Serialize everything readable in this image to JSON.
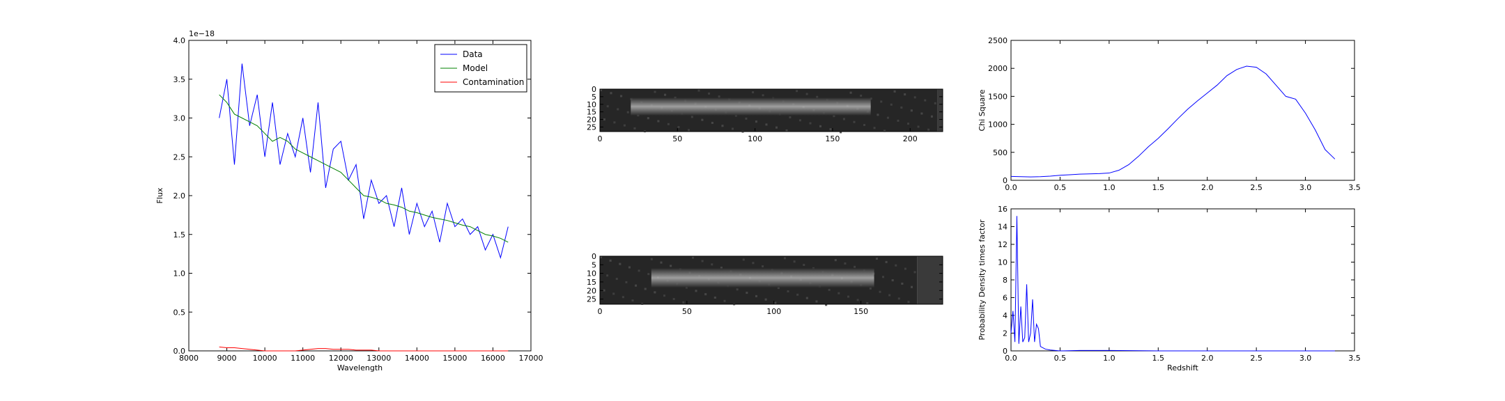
{
  "chart_data": [
    {
      "type": "line",
      "xlabel": "Wavelength",
      "ylabel": "Flux",
      "offset_label": "1e−18",
      "x": [
        8800,
        9000,
        9200,
        9400,
        9600,
        9800,
        10000,
        10200,
        10400,
        10600,
        10800,
        11000,
        11200,
        11400,
        11600,
        11800,
        12000,
        12200,
        12400,
        12600,
        12800,
        13000,
        13200,
        13400,
        13600,
        13800,
        14000,
        14200,
        14400,
        14600,
        14800,
        15000,
        15200,
        15400,
        15600,
        15800,
        16000,
        16200,
        16400
      ],
      "series": [
        {
          "name": "Data",
          "color": "#0000ff",
          "values": [
            3.0,
            3.5,
            2.4,
            3.7,
            2.9,
            3.3,
            2.5,
            3.2,
            2.4,
            2.8,
            2.5,
            3.0,
            2.3,
            3.2,
            2.1,
            2.6,
            2.7,
            2.2,
            2.4,
            1.7,
            2.2,
            1.9,
            2.0,
            1.6,
            2.1,
            1.5,
            1.9,
            1.6,
            1.8,
            1.4,
            1.9,
            1.6,
            1.7,
            1.5,
            1.6,
            1.3,
            1.5,
            1.2,
            1.6
          ]
        },
        {
          "name": "Model",
          "color": "#008000",
          "values": [
            3.3,
            3.2,
            3.05,
            3.0,
            2.95,
            2.9,
            2.8,
            2.7,
            2.75,
            2.7,
            2.6,
            2.55,
            2.5,
            2.45,
            2.4,
            2.35,
            2.3,
            2.2,
            2.1,
            2.0,
            1.98,
            1.95,
            1.9,
            1.88,
            1.85,
            1.8,
            1.78,
            1.75,
            1.72,
            1.7,
            1.68,
            1.65,
            1.62,
            1.6,
            1.55,
            1.5,
            1.48,
            1.45,
            1.4
          ]
        },
        {
          "name": "Contamination",
          "color": "#ff0000",
          "values": [
            0.05,
            0.04,
            0.04,
            0.03,
            0.02,
            0.01,
            0,
            0,
            0,
            0,
            0,
            0.01,
            0.02,
            0.03,
            0.03,
            0.02,
            0.02,
            0.02,
            0.01,
            0.01,
            0.01,
            0,
            0,
            0,
            0,
            0,
            0,
            0,
            0,
            0,
            0,
            0,
            0,
            0,
            0,
            0,
            0,
            0,
            0
          ]
        }
      ],
      "xlim": [
        8000,
        17000
      ],
      "xticks": [
        8000,
        9000,
        10000,
        11000,
        12000,
        13000,
        14000,
        15000,
        16000,
        17000
      ],
      "ylim": [
        0,
        4
      ],
      "yticks": [
        {
          "value": 0,
          "label": "0.0"
        },
        0.5,
        {
          "value": 1,
          "label": "1.0"
        },
        1.5,
        {
          "value": 2,
          "label": "2.0"
        },
        2.5,
        {
          "value": 3,
          "label": "3.0"
        },
        3.5,
        {
          "value": 4,
          "label": "4.0"
        }
      ],
      "legend": "upper right"
    },
    {
      "type": "image",
      "xlim": [
        0,
        221
      ],
      "xticks": [
        0,
        50,
        100,
        150,
        200
      ],
      "ylim": [
        28,
        0
      ],
      "yticks": [
        0,
        5,
        10,
        15,
        20,
        25
      ]
    },
    {
      "type": "image",
      "xlim": [
        0,
        197
      ],
      "xticks": [
        0,
        50,
        100,
        150
      ],
      "ylim": [
        28,
        0
      ],
      "yticks": [
        0,
        5,
        10,
        15,
        20,
        25
      ]
    },
    {
      "type": "line",
      "ylabel": "Chi Square",
      "color": "#0000ff",
      "x": [
        0,
        0.1,
        0.2,
        0.3,
        0.4,
        0.5,
        0.6,
        0.7,
        0.8,
        0.9,
        1.0,
        1.1,
        1.2,
        1.3,
        1.4,
        1.5,
        1.6,
        1.7,
        1.8,
        1.9,
        2.0,
        2.1,
        2.2,
        2.3,
        2.4,
        2.5,
        2.6,
        2.7,
        2.8,
        2.9,
        3.0,
        3.1,
        3.2,
        3.3
      ],
      "values": [
        70,
        65,
        60,
        65,
        75,
        90,
        100,
        110,
        115,
        120,
        130,
        180,
        280,
        430,
        600,
        750,
        920,
        1100,
        1270,
        1420,
        1560,
        1700,
        1870,
        1980,
        2040,
        2020,
        1900,
        1700,
        1500,
        1450,
        1200,
        900,
        550,
        380
      ],
      "xlim": [
        0,
        3.5
      ],
      "xticks": [
        {
          "value": 0,
          "label": "0.0"
        },
        0.5,
        {
          "value": 1,
          "label": "1.0"
        },
        1.5,
        {
          "value": 2,
          "label": "2.0"
        },
        2.5,
        {
          "value": 3,
          "label": "3.0"
        },
        3.5
      ],
      "ylim": [
        0,
        2500
      ],
      "yticks": [
        0,
        500,
        1000,
        1500,
        2000,
        2500
      ]
    },
    {
      "type": "line",
      "xlabel": "Redshift",
      "ylabel": "Probability Density times factor",
      "color": "#0000ff",
      "x": [
        0,
        0.02,
        0.04,
        0.06,
        0.08,
        0.1,
        0.12,
        0.14,
        0.16,
        0.18,
        0.2,
        0.22,
        0.24,
        0.26,
        0.28,
        0.3,
        0.35,
        0.4,
        0.45,
        0.5,
        0.7,
        1.0,
        1.5,
        2.0,
        2.5,
        3.0,
        3.3
      ],
      "values": [
        2,
        4.5,
        1,
        15.2,
        0.8,
        5,
        1,
        1.5,
        7.5,
        1,
        2,
        5.8,
        1,
        3,
        2.5,
        0.5,
        0.2,
        0.1,
        0.05,
        0,
        0.05,
        0.05,
        0,
        0,
        0,
        0,
        0
      ],
      "xlim": [
        0,
        3.5
      ],
      "xticks": [
        {
          "value": 0,
          "label": "0.0"
        },
        0.5,
        {
          "value": 1,
          "label": "1.0"
        },
        1.5,
        {
          "value": 2,
          "label": "2.0"
        },
        2.5,
        {
          "value": 3,
          "label": "3.0"
        },
        3.5
      ],
      "ylim": [
        0,
        16
      ],
      "yticks": [
        0,
        2,
        4,
        6,
        8,
        10,
        12,
        14,
        16
      ]
    }
  ]
}
